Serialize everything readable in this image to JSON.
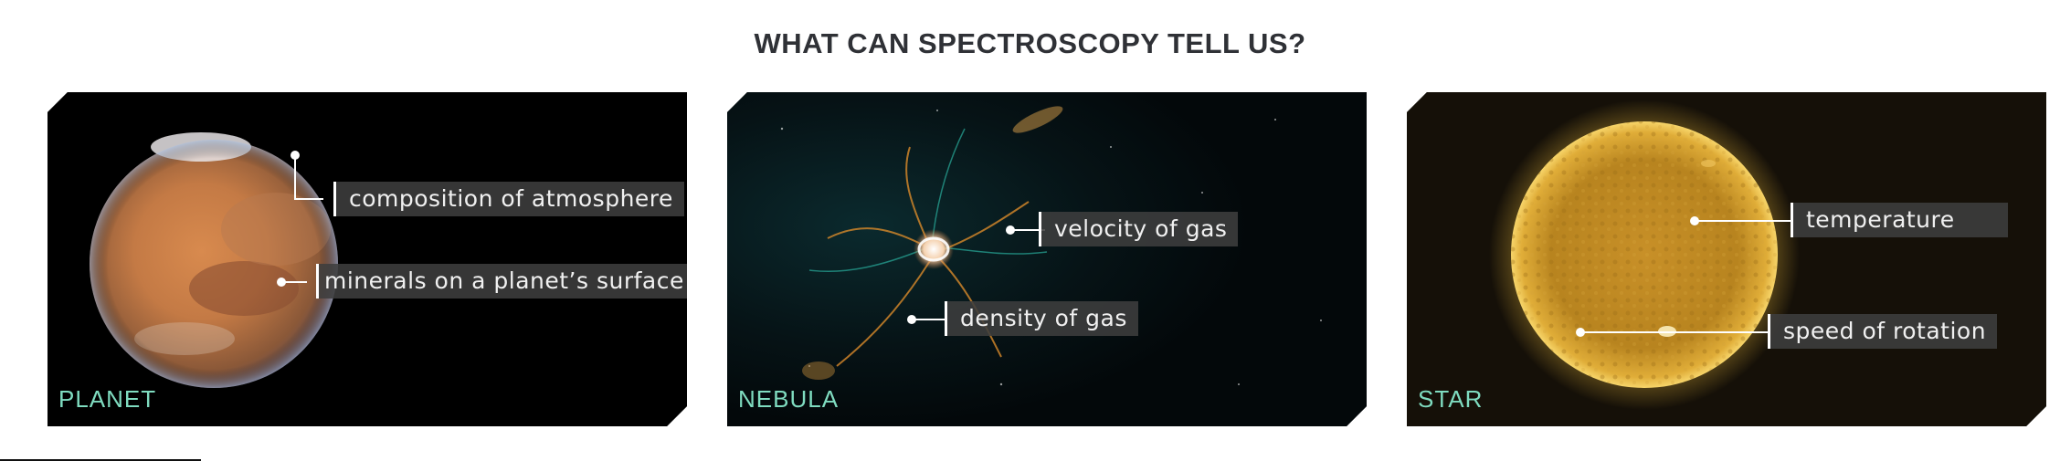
{
  "title": "WHAT CAN SPECTROSCOPY TELL US?",
  "panels": [
    {
      "region": "PLANET",
      "labels": [
        "composition of atmosphere",
        "minerals on a planet’s surface"
      ]
    },
    {
      "region": "NEBULA",
      "labels": [
        "velocity of gas",
        "density of gas"
      ]
    },
    {
      "region": "STAR",
      "labels": [
        "temperature",
        "speed of rotation"
      ]
    }
  ],
  "colors": {
    "title": "#2f3136",
    "region_text": "#7fdcc0",
    "label_bg": "#3e3e3e",
    "panel_bg": "#000000",
    "star_glow": "#e8b020"
  },
  "icons": [
    "planet-image",
    "nebula-image",
    "star-image"
  ]
}
